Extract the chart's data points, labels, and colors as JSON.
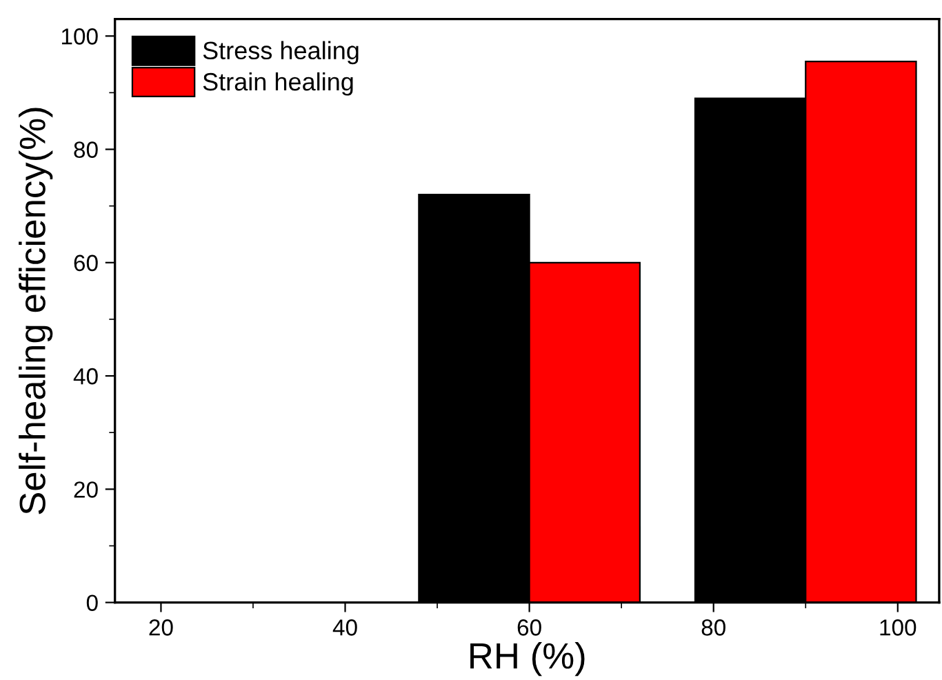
{
  "chart_data": {
    "type": "bar",
    "xlabel": "RH (%)",
    "ylabel": "Self-healing efficiency(%)",
    "x": [
      60,
      90
    ],
    "series": [
      {
        "name": "Stress healing",
        "color": "#000000",
        "values": [
          72,
          89
        ]
      },
      {
        "name": "Strain healing",
        "color": "#ff0000",
        "values": [
          60,
          95.5
        ]
      }
    ],
    "xlim": [
      15,
      104.5
    ],
    "xticks": [
      20,
      40,
      60,
      80,
      100
    ],
    "ylim": [
      0,
      103
    ],
    "yticks": [
      0,
      20,
      40,
      60,
      80,
      100
    ],
    "grid": false,
    "legend": "top left"
  }
}
